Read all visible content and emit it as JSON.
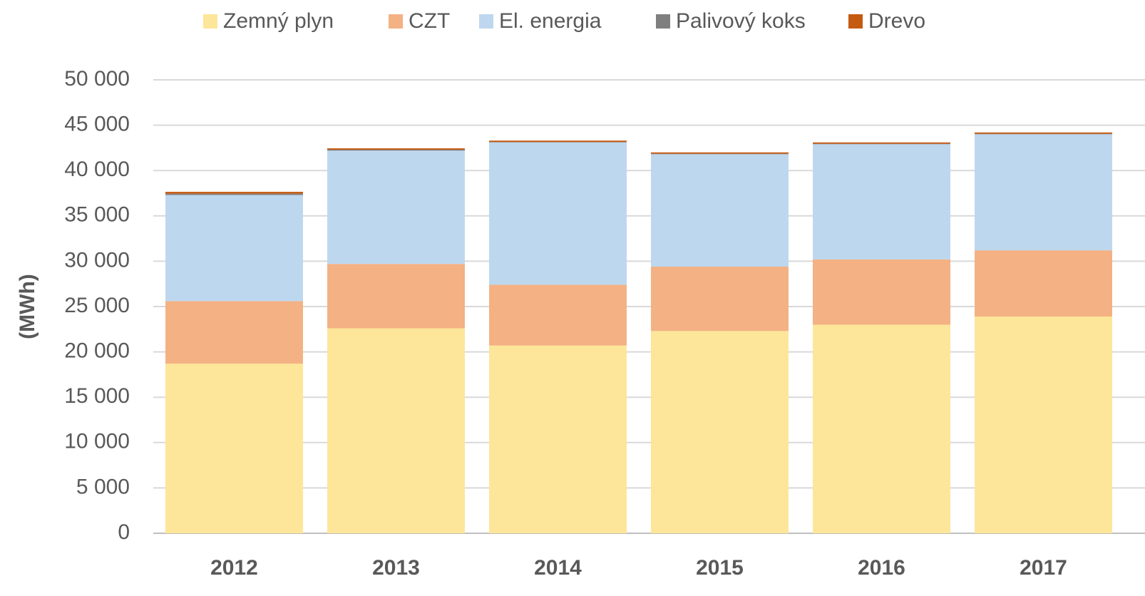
{
  "chart_data": {
    "type": "stacked_bar",
    "y_label": "(MWh)",
    "categories": [
      "2012",
      "2013",
      "2014",
      "2015",
      "2016",
      "2017"
    ],
    "series": [
      {
        "name": "Zemný plyn",
        "color": "#fde699",
        "values": [
          18700,
          22600,
          20700,
          22300,
          23000,
          23900
        ]
      },
      {
        "name": "CZT",
        "color": "#f4b183",
        "values": [
          6900,
          7100,
          6700,
          7100,
          7200,
          7300
        ]
      },
      {
        "name": "El. energia",
        "color": "#bdd7ee",
        "values": [
          11700,
          12500,
          15700,
          12400,
          12700,
          12800
        ]
      },
      {
        "name": "Palivový koks",
        "color": "#7f7f7f",
        "values": [
          150,
          100,
          50,
          50,
          50,
          50
        ]
      },
      {
        "name": "Drevo",
        "color": "#c55a11",
        "values": [
          200,
          150,
          150,
          150,
          150,
          150
        ]
      }
    ],
    "ylim": [
      0,
      50000
    ],
    "yticks": [
      0,
      {
        "value": 5000,
        "label": "5 000"
      },
      {
        "value": 10000,
        "label": "10 000"
      },
      {
        "value": 15000,
        "label": "15 000"
      },
      {
        "value": 20000,
        "label": "20 000"
      },
      {
        "value": 25000,
        "label": "25 000"
      },
      {
        "value": 30000,
        "label": "30 000"
      },
      {
        "value": 35000,
        "label": "35 000"
      },
      {
        "value": 40000,
        "label": "40 000"
      },
      {
        "value": 45000,
        "label": "45 000"
      },
      {
        "value": 50000,
        "label": "50 000"
      }
    ],
    "grid": true,
    "legend": "top"
  }
}
